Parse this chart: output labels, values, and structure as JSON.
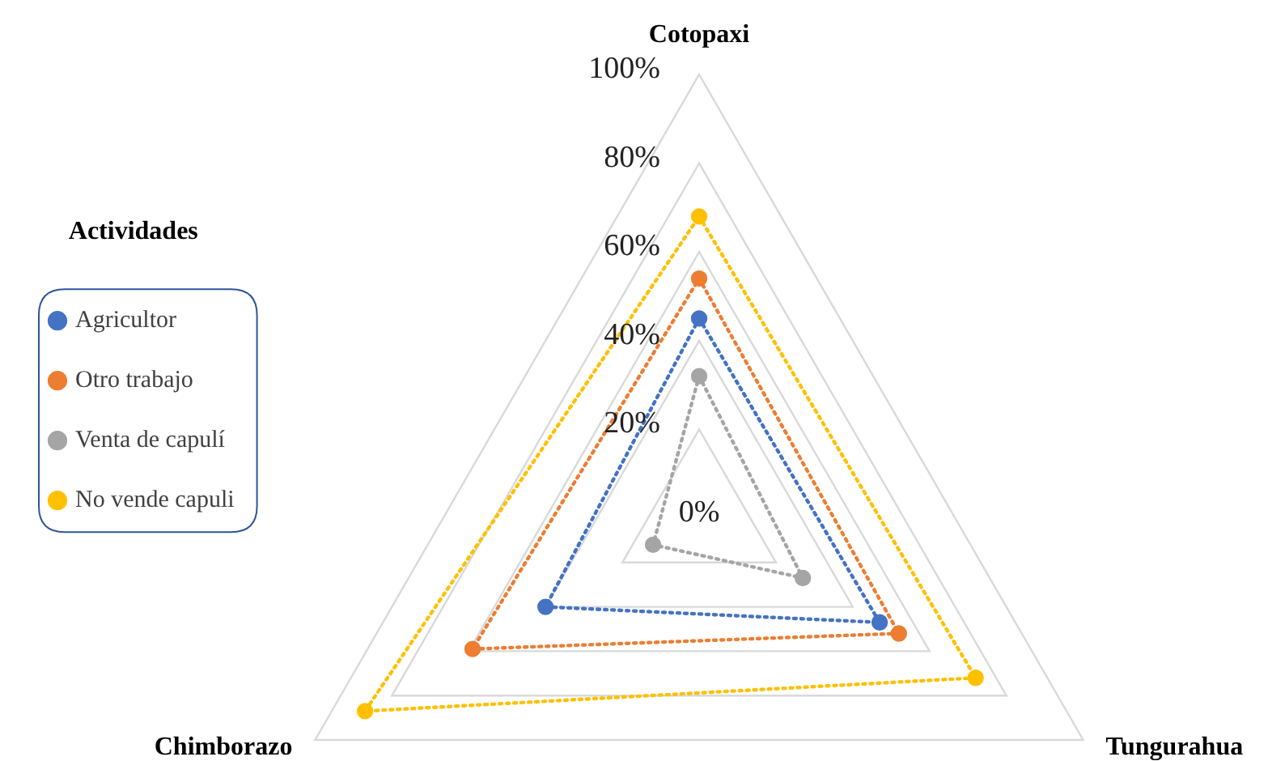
{
  "chart_data": {
    "type": "radar",
    "categories": [
      "Cotopaxi",
      "Tungurahua",
      "Chimborazo"
    ],
    "series": [
      {
        "name": "Agricultor",
        "color": "#4472c4",
        "values": [
          45,
          47,
          40
        ]
      },
      {
        "name": "Otro trabajo",
        "color": "#ed7d31",
        "values": [
          54,
          52,
          59
        ]
      },
      {
        "name": "Venta de capulí",
        "color": "#a5a5a5",
        "values": [
          32,
          27,
          12
        ]
      },
      {
        "name": "No vende capuli",
        "color": "#ffc000",
        "values": [
          68,
          72,
          87
        ]
      }
    ],
    "ylim": [
      0,
      100
    ],
    "yticks": [
      {
        "value": 0,
        "label": "0%"
      },
      {
        "value": 20,
        "label": "20%"
      },
      {
        "value": 40,
        "label": "40%"
      },
      {
        "value": 60,
        "label": "60%"
      },
      {
        "value": 80,
        "label": "80%"
      },
      {
        "value": 100,
        "label": "100%"
      }
    ],
    "grid": true,
    "legend": "left",
    "legend_title": "Actividades",
    "marker": "circle",
    "line_style": "dotted"
  }
}
